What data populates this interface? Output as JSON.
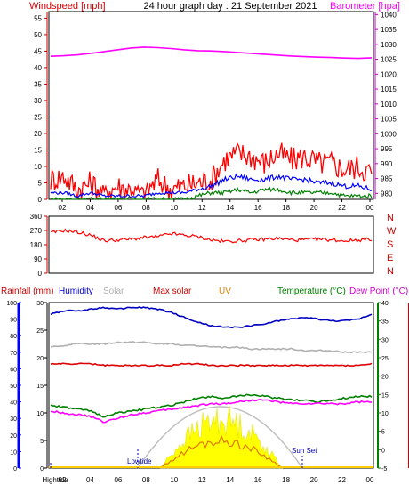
{
  "header": {
    "left": "Windspeed [mph]",
    "center": "24 hour graph day : 21 September 2021",
    "right": "Barometer [hpa]"
  },
  "colors": {
    "windspeed": "#ff0000",
    "windavg": "#0000ff",
    "windmin": "#008000",
    "barometer": "#ff00ff",
    "humidity": "#0000c0",
    "solar": "#b0b0b0",
    "maxsolar": "#dd0000",
    "uv": "#e08000",
    "temperature": "#008000",
    "dewpoint": "#ff00ff",
    "sunfill": "#ffff00"
  },
  "chart_data": [
    {
      "type": "line",
      "id": "wind-baro",
      "x_tick_labels": [
        "02",
        "04",
        "06",
        "08",
        "10",
        "12",
        "14",
        "16",
        "18",
        "20",
        "22",
        "00"
      ],
      "left_axis": {
        "label": "Windspeed [mph]",
        "ticks": [
          0,
          5,
          10,
          15,
          20,
          25,
          30,
          35,
          40,
          45,
          50,
          55
        ],
        "range": [
          0,
          57
        ]
      },
      "right_axis": {
        "label": "Barometer [hpa]",
        "ticks": [
          980,
          985,
          990,
          995,
          1000,
          1005,
          1010,
          1015,
          1020,
          1025,
          1030,
          1035,
          1040
        ],
        "range": [
          978,
          1041
        ]
      },
      "series": [
        {
          "key": "barometer",
          "color": "#ff00ff",
          "axis": "right",
          "values": [
            1026.0,
            1026.2,
            1026.5,
            1027.0,
            1027.6,
            1028.2,
            1028.8,
            1029.1,
            1028.9,
            1028.6,
            1028.2,
            1027.9,
            1027.8,
            1027.6,
            1027.3,
            1027.0,
            1026.7,
            1026.4,
            1026.1,
            1025.9,
            1025.7,
            1025.6,
            1025.4,
            1025.3,
            1025.5
          ]
        },
        {
          "key": "windspeed",
          "color": "#ff0000",
          "axis": "left",
          "values": [
            6,
            7,
            3,
            5,
            2,
            4,
            3,
            2,
            6,
            3,
            4,
            5,
            6,
            12,
            14,
            13,
            11,
            14,
            12,
            13,
            11,
            11,
            9,
            10,
            8
          ]
        },
        {
          "key": "windavg",
          "color": "#0000ff",
          "axis": "left",
          "values": [
            2,
            2,
            1,
            2,
            1,
            1,
            1,
            1,
            2,
            2,
            2,
            3,
            4,
            6,
            7,
            6,
            6,
            7,
            6,
            6,
            5,
            5,
            4,
            4,
            3
          ]
        },
        {
          "key": "windmin",
          "color": "#008000",
          "axis": "left",
          "values": [
            0,
            0,
            0,
            0,
            0,
            0,
            0,
            0,
            0,
            0,
            0,
            1,
            2,
            2,
            3,
            2,
            3,
            3,
            2,
            2,
            2,
            2,
            1,
            1,
            1
          ]
        }
      ]
    },
    {
      "type": "line",
      "id": "wind-direction",
      "x_tick_labels": [],
      "left_axis": {
        "ticks": [
          0,
          90,
          180,
          270,
          360
        ],
        "range": [
          0,
          360
        ]
      },
      "right_labels": [
        "N",
        "W",
        "S",
        "E",
        "N"
      ],
      "series": [
        {
          "key": "direction",
          "color": "#ff0000",
          "values": [
            255,
            270,
            260,
            240,
            205,
            210,
            215,
            225,
            230,
            250,
            240,
            230,
            210,
            200,
            205,
            210,
            215,
            220,
            210,
            210,
            215,
            210,
            205,
            210,
            215
          ]
        }
      ]
    },
    {
      "type": "line",
      "id": "humidity-temp",
      "x_tick_labels": [
        "Hightide",
        "02",
        "04",
        "06",
        "08",
        "10",
        "12",
        "14",
        "16",
        "18",
        "20",
        "22",
        "00"
      ],
      "header": {
        "rainfall": "Rainfall (mm)",
        "humidity": "Humidity",
        "solar": "Solar",
        "maxsolar": "Max solar",
        "uv": "UV",
        "temperature": "Temperature (°C)",
        "dewpoint": "Dew Point (°C)"
      },
      "rain_axis": {
        "ticks": [
          0,
          5,
          10,
          15,
          20,
          25,
          30
        ],
        "range": [
          0,
          30
        ]
      },
      "humidity_axis": {
        "ticks": [
          0,
          10,
          20,
          30,
          40,
          50,
          60,
          70,
          80,
          90,
          100
        ],
        "range": [
          0,
          100
        ]
      },
      "temp_axis": {
        "ticks": [
          -5,
          0,
          5,
          10,
          15,
          20,
          25,
          30,
          35,
          40
        ],
        "range": [
          -5,
          40
        ]
      },
      "series": [
        {
          "key": "humidity",
          "color": "#0000c0",
          "axis": "humidity",
          "values": [
            93,
            95,
            95,
            96,
            97,
            96,
            97,
            97,
            96,
            94,
            91,
            88,
            86,
            85,
            85,
            86,
            87,
            89,
            90,
            91,
            90,
            89,
            89,
            90,
            93
          ]
        },
        {
          "key": "solar",
          "color": "#b0b0b0",
          "axis": "humidity",
          "values": [
            73,
            74,
            75,
            75,
            75,
            76,
            76,
            76,
            75,
            75,
            74,
            74,
            73,
            73,
            73,
            72,
            72,
            72,
            72,
            71,
            71,
            71,
            70,
            70,
            70
          ]
        },
        {
          "key": "maxsolar",
          "color": "#dd0000",
          "axis": "humidity",
          "values": [
            63,
            63,
            63,
            63,
            62,
            62,
            62,
            62,
            62,
            62,
            63,
            63,
            62,
            62,
            62,
            62,
            62,
            62,
            62,
            62,
            62,
            62,
            62,
            62,
            63
          ]
        },
        {
          "key": "temperature",
          "color": "#008000",
          "axis": "temp",
          "values": [
            12.0,
            11.5,
            11.0,
            10.5,
            9.0,
            10.0,
            10.5,
            11.0,
            11.5,
            12.0,
            13.0,
            14.0,
            14.5,
            14.0,
            14.5,
            15.0,
            14.5,
            14.0,
            13.5,
            13.5,
            13.0,
            13.5,
            14.0,
            14.5,
            14.5
          ]
        },
        {
          "key": "dewpoint",
          "color": "#ff00ff",
          "axis": "temp",
          "values": [
            10.5,
            10.0,
            9.5,
            9.0,
            7.5,
            8.5,
            9.5,
            10.0,
            10.5,
            11.0,
            11.5,
            12.0,
            12.5,
            12.5,
            13.0,
            13.5,
            13.5,
            13.0,
            12.5,
            12.5,
            12.5,
            12.5,
            12.5,
            13.0,
            13.0
          ]
        }
      ],
      "annotations": [
        {
          "label": "Hightide"
        },
        {
          "label": "Lowtide"
        },
        {
          "label": "Sun Set"
        }
      ]
    }
  ]
}
